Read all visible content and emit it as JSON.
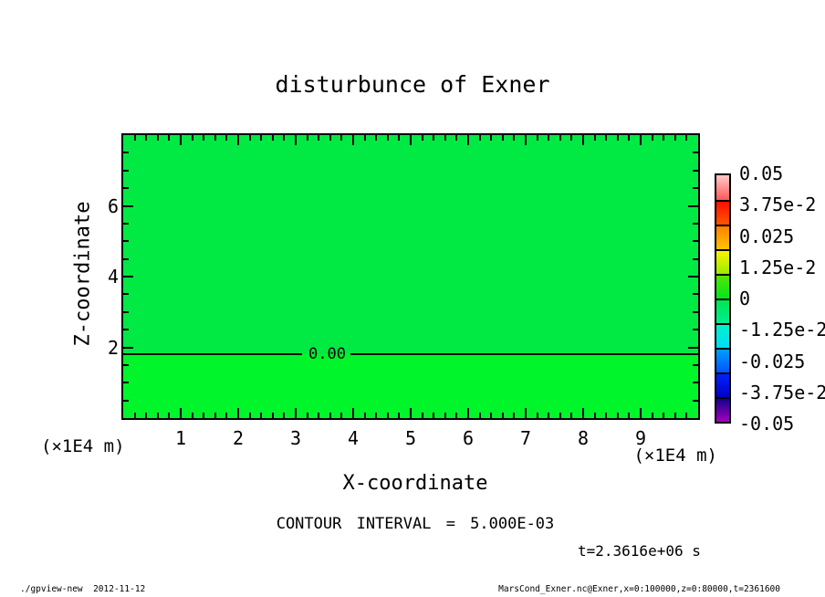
{
  "chart_data": {
    "type": "heatmap",
    "title": "disturbunce of Exner",
    "xlabel": "X-coordinate",
    "ylabel": "Z-coordinate",
    "x_unit": "(×1E4 m)",
    "y_unit": "(×1E4 m)",
    "xlim": [
      0,
      10
    ],
    "ylim": [
      0,
      8
    ],
    "x_major_ticks": [
      1,
      2,
      3,
      4,
      5,
      6,
      7,
      8,
      9
    ],
    "x_minor_step": 0.2,
    "y_major_ticks": [
      2,
      4,
      6
    ],
    "y_minor_step": 0.5,
    "grid": false,
    "field_summary": "near-uniform Exner disturbance field close to 0; single 0.00 contour line crossing the domain at z ≈ 1.8 (×1E4 m)",
    "contour": {
      "level_label": "0.00",
      "z_value": 1.81,
      "label_x_value": 3.55
    },
    "fill_colors": {
      "above_contour": "#00EA43",
      "below_contour": "#00F52B"
    },
    "contour_interval_text": "CONTOUR INTERVAL = 5.000E-03",
    "time_text": "t=2.3616e+06 s",
    "colorbar": {
      "position": "right",
      "labels": [
        "0.05",
        "3.75e-2",
        "0.025",
        "1.25e-2",
        "0",
        "-1.25e-2",
        "-0.025",
        "-3.75e-2",
        "-0.05"
      ],
      "value_range": [
        -0.05,
        0.05
      ],
      "segments": [
        {
          "from": "#FFC8C8",
          "to": "#FF5A5A"
        },
        {
          "from": "#FF0F00",
          "to": "#FF5500"
        },
        {
          "from": "#FF8200",
          "to": "#FFC300"
        },
        {
          "from": "#F8F500",
          "to": "#9CEC00"
        },
        {
          "from": "#55E600",
          "to": "#00E620"
        },
        {
          "from": "#00E64E",
          "to": "#00EC96"
        },
        {
          "from": "#00F2C8",
          "to": "#00DCF8"
        },
        {
          "from": "#009EFA",
          "to": "#0055FF"
        },
        {
          "from": "#0023FA",
          "to": "#0000C8"
        },
        {
          "from": "#16008C",
          "to": "#A500BE"
        }
      ]
    }
  },
  "footer": {
    "left": "./gpview-new  2012-11-12",
    "right": "MarsCond_Exner.nc@Exner,x=0:100000,z=0:80000,t=2361600"
  }
}
